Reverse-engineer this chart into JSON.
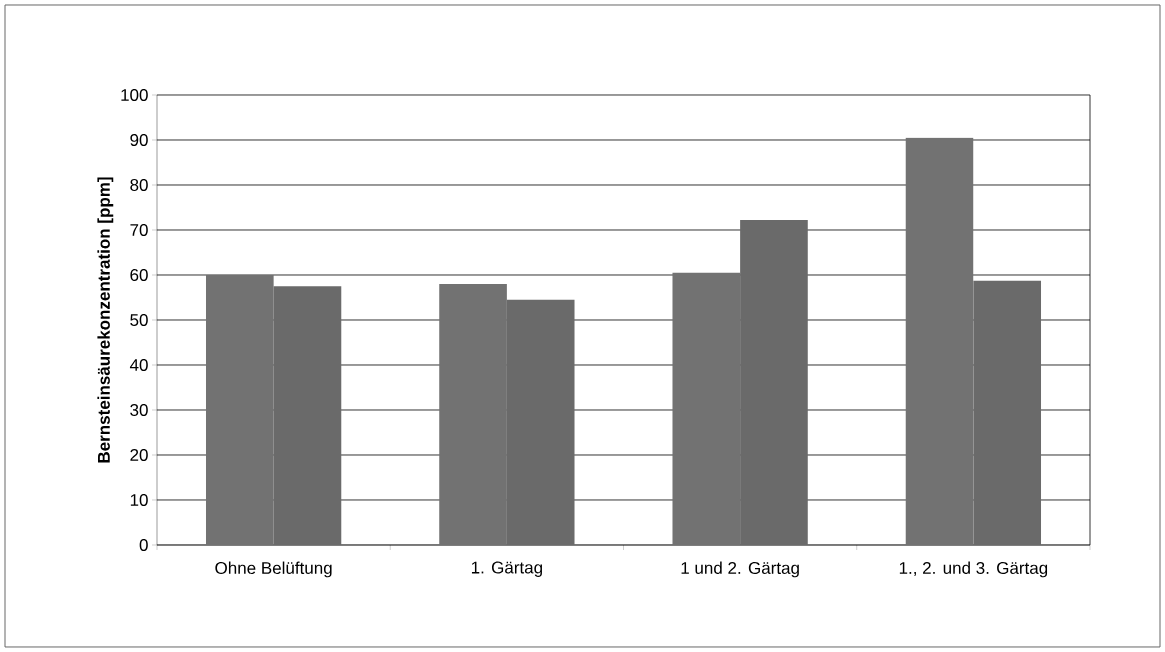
{
  "chart_data": {
    "type": "bar",
    "ylabel": "Bernsteinsäurekonzentration [ppm]",
    "categories": [
      "Ohne Belüftung",
      "1. Gärtag",
      "1 und 2. Gärtag",
      "1., 2. und 3. Gärtag"
    ],
    "series": [
      {
        "color": "#727272",
        "values": [
          60,
          58,
          60.5,
          90.5
        ]
      },
      {
        "color": "#6a6a6a",
        "values": [
          57.5,
          54.5,
          72.2,
          58.7
        ]
      }
    ],
    "ylim": [
      0,
      100
    ],
    "yticks": [
      0,
      10,
      20,
      30,
      40,
      50,
      60,
      70,
      80,
      90,
      100
    ],
    "grid": "y"
  }
}
